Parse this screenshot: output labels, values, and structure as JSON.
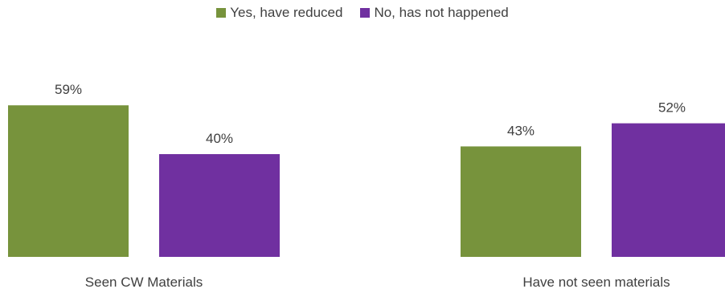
{
  "chart_data": {
    "type": "bar",
    "categories": [
      "Seen CW Materials",
      "Have not seen materials"
    ],
    "series": [
      {
        "name": "Yes, have reduced",
        "values": [
          59,
          43
        ],
        "color": "#77933C"
      },
      {
        "name": "No, has not happened",
        "values": [
          40,
          52
        ],
        "color": "#7030A0"
      }
    ],
    "value_suffix": "%",
    "ylim": [
      0,
      100
    ],
    "grid": false,
    "legend_position": "top-center",
    "title": "",
    "xlabel": "",
    "ylabel": ""
  }
}
